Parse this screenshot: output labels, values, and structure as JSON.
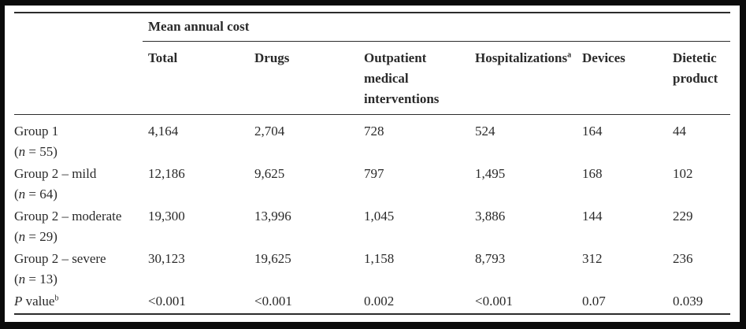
{
  "table": {
    "group_header": "Mean annual cost",
    "columns": [
      {
        "lines": [
          "Total"
        ]
      },
      {
        "lines": [
          "Drugs"
        ]
      },
      {
        "lines": [
          "Outpatient",
          "medical",
          "interventions"
        ]
      },
      {
        "lines": [
          "Hospitalizations"
        ],
        "sup": "a"
      },
      {
        "lines": [
          "Devices"
        ]
      },
      {
        "lines": [
          "Dietetic",
          "product"
        ]
      }
    ],
    "rows": [
      {
        "label": "Group 1",
        "n_label": "(n = 55)",
        "values": [
          "4,164",
          "2,704",
          "728",
          "524",
          "164",
          "44"
        ]
      },
      {
        "label": "Group 2 – mild",
        "n_label": "(n = 64)",
        "values": [
          "12,186",
          "9,625",
          "797",
          "1,495",
          "168",
          "102"
        ]
      },
      {
        "label": "Group 2 – moderate",
        "n_label": "(n = 29)",
        "values": [
          "19,300",
          "13,996",
          "1,045",
          "3,886",
          "144",
          "229"
        ]
      },
      {
        "label": "Group 2 – severe",
        "n_label": "(n = 13)",
        "values": [
          "30,123",
          "19,625",
          "1,158",
          "8,793",
          "312",
          "236"
        ]
      }
    ],
    "pvalue_row": {
      "label_italic": "P",
      "label_rest": " value",
      "label_sup": "b",
      "values": [
        "<0.001",
        "<0.001",
        "0.002",
        "<0.001",
        "0.07",
        "0.039"
      ]
    }
  }
}
